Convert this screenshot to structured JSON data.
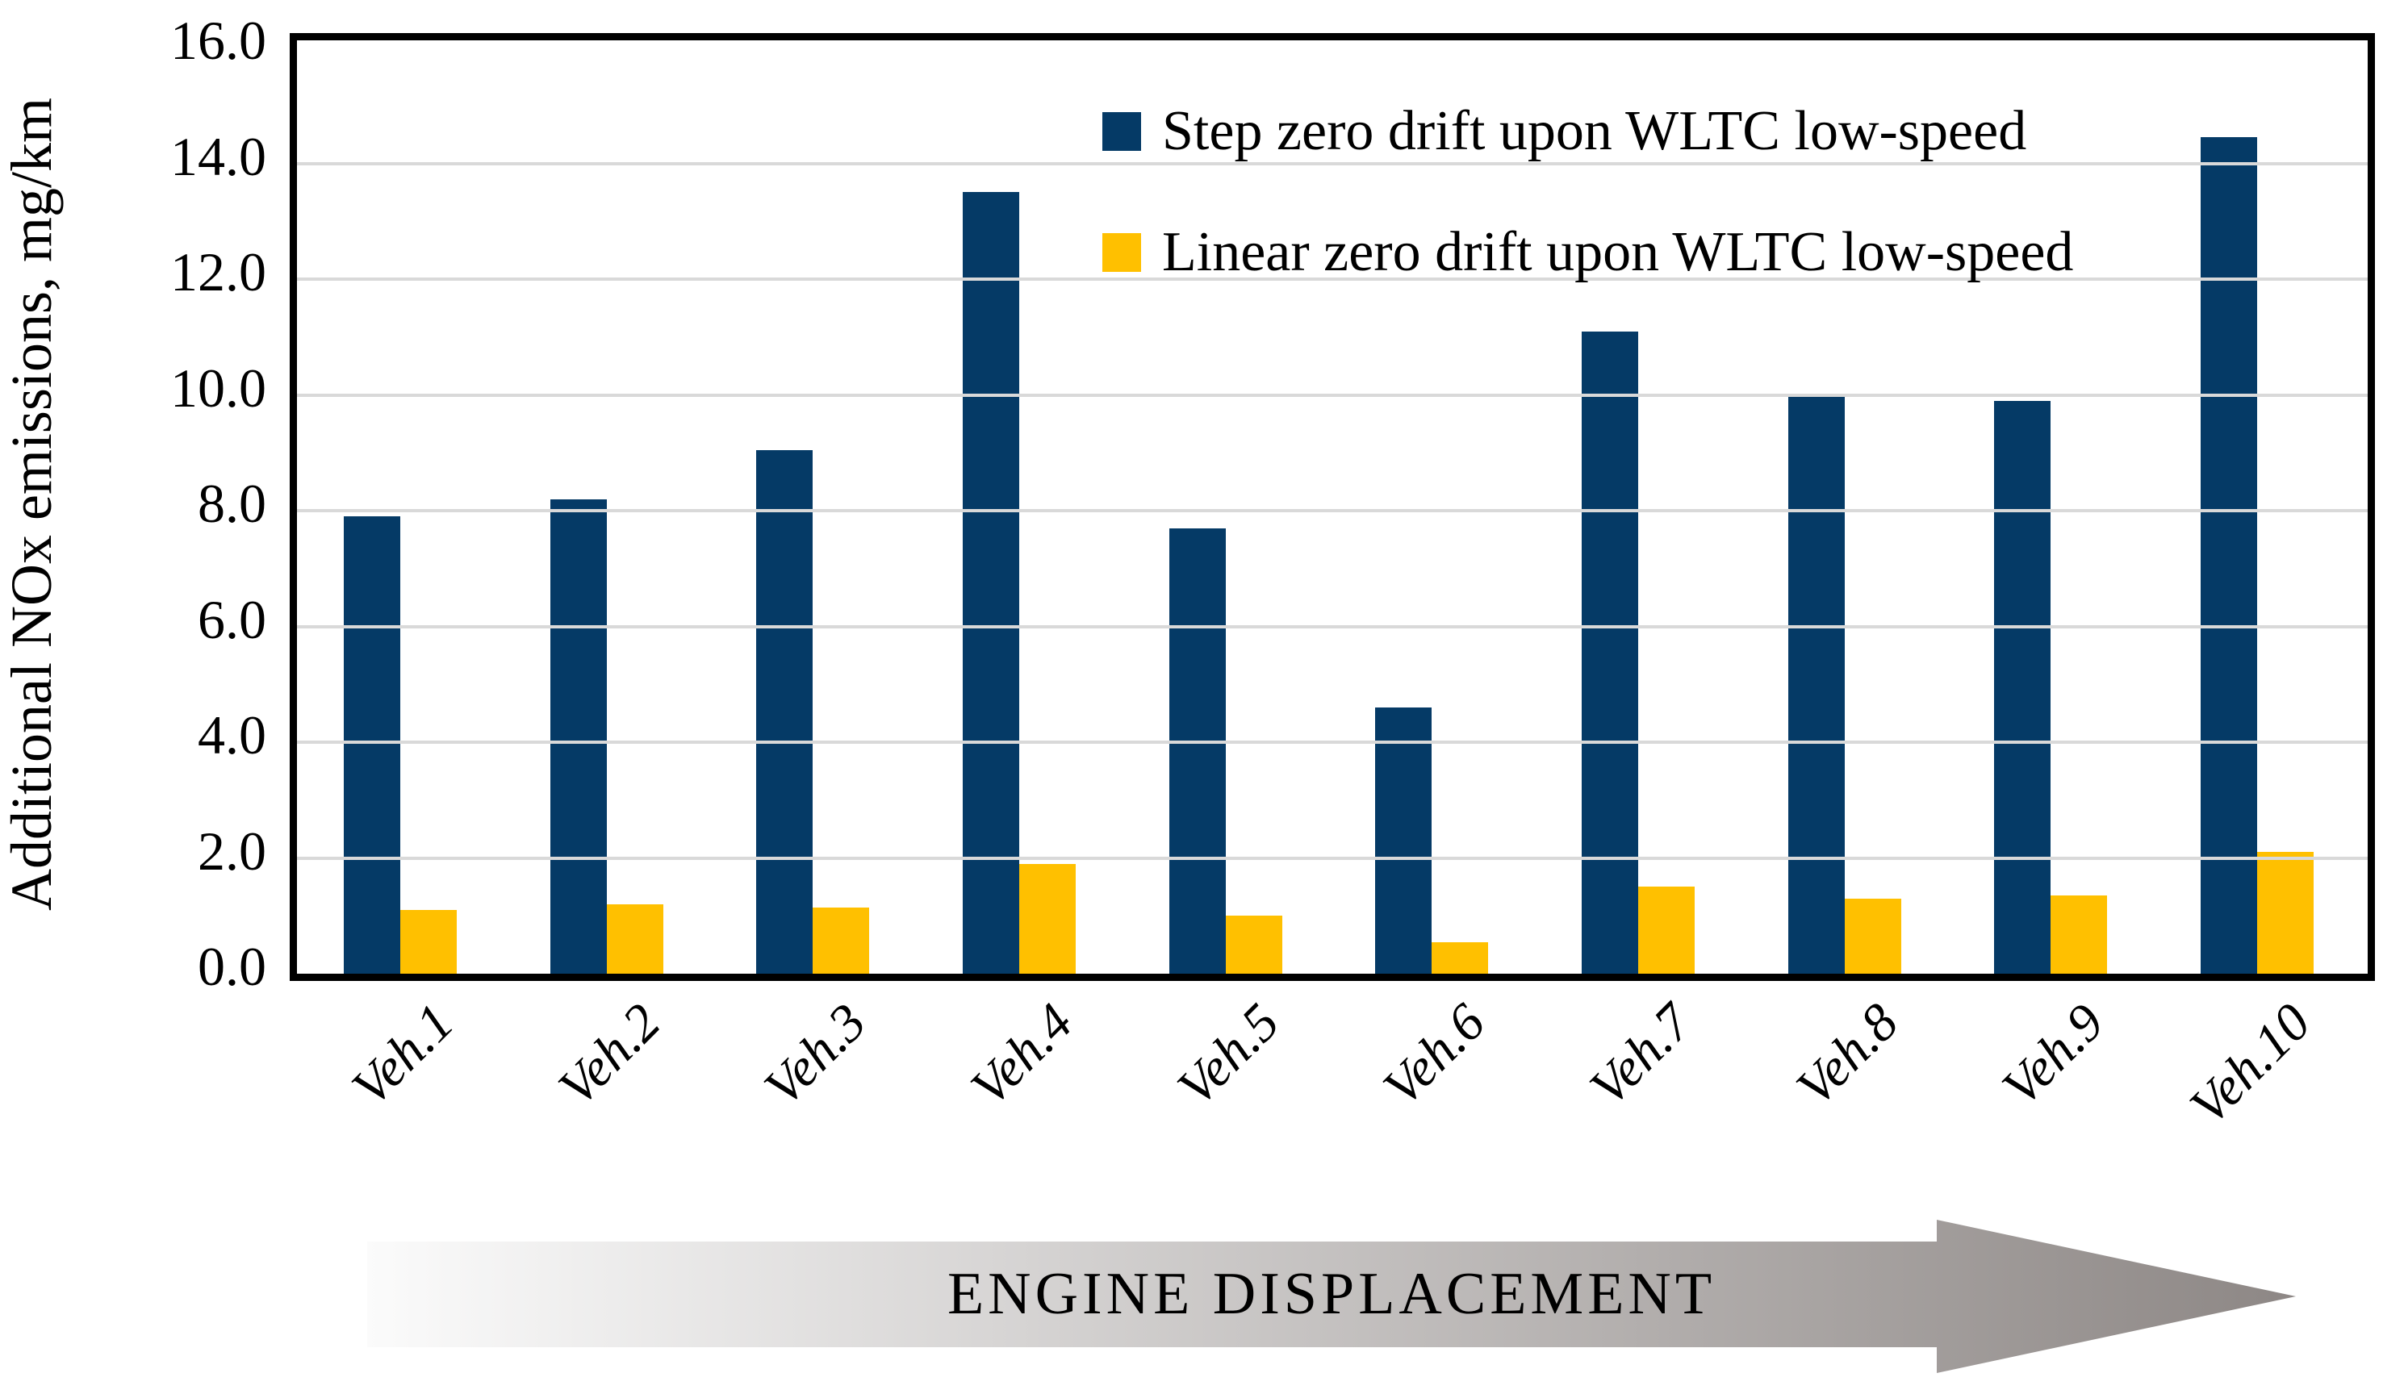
{
  "chart_data": {
    "type": "bar",
    "categories": [
      "Veh.1",
      "Veh.2",
      "Veh.3",
      "Veh.4",
      "Veh.5",
      "Veh.6",
      "Veh.7",
      "Veh.8",
      "Veh.9",
      "Veh.10"
    ],
    "series": [
      {
        "name": "Step zero drift upon WLTC low-speed",
        "color": "#053a66",
        "values": [
          7.9,
          8.2,
          9.05,
          13.5,
          7.7,
          4.6,
          11.1,
          10.0,
          9.9,
          14.45
        ]
      },
      {
        "name": "Linear zero drift upon WLTC low-speed",
        "color": "#ffc000",
        "values": [
          1.1,
          1.2,
          1.15,
          1.9,
          1.0,
          0.55,
          1.5,
          1.3,
          1.35,
          2.1
        ]
      }
    ],
    "title": "",
    "xlabel": "",
    "ylabel": "Additional NOx  emissions, mg/km",
    "ylim": [
      0,
      16
    ],
    "ytick_step": 2,
    "ytick_labels": [
      "0.0",
      "2.0",
      "4.0",
      "6.0",
      "8.0",
      "10.0",
      "12.0",
      "14.0",
      "16.0"
    ],
    "grid": "horizontal",
    "legend_position": "top-right-inside"
  },
  "arrow": {
    "label": "ENGINE DISPLACEMENT"
  },
  "colors": {
    "gridline": "#d9d9d9",
    "axis": "#000000",
    "step_series": "#053a66",
    "linear_series": "#ffc000",
    "arrow_gradient_start": "#fbfbfb",
    "arrow_gradient_end": "#8d8785",
    "text": "#000000"
  }
}
